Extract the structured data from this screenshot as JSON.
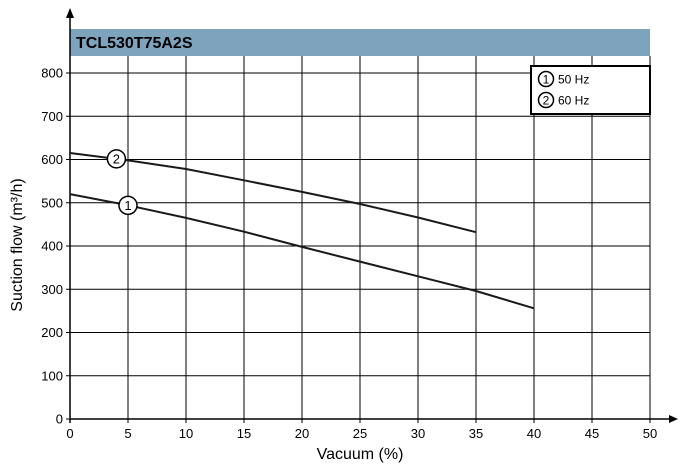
{
  "chart_data": {
    "type": "line",
    "title": "TCL530T75A2S",
    "xlabel": "Vacuum (%)",
    "ylabel": "Suction flow (m³/h)",
    "xlim": [
      0,
      50
    ],
    "ylim": [
      0,
      800
    ],
    "xticks": [
      "0",
      "5",
      "10",
      "15",
      "20",
      "25",
      "30",
      "35",
      "40",
      "45",
      "50"
    ],
    "yticks": [
      "0",
      "100",
      "200",
      "300",
      "400",
      "500",
      "600",
      "700",
      "800"
    ],
    "grid": true,
    "legend_position": "top-right",
    "series": [
      {
        "name": "50 Hz",
        "marker": "1",
        "marker_at": 5,
        "x": [
          0,
          5,
          10,
          15,
          20,
          25,
          30,
          35,
          40
        ],
        "y": [
          520,
          494,
          465,
          433,
          398,
          364,
          330,
          296,
          256
        ]
      },
      {
        "name": "60 Hz",
        "marker": "2",
        "marker_at": 4,
        "x": [
          0,
          5,
          10,
          15,
          20,
          25,
          30,
          35
        ],
        "y": [
          615,
          598,
          578,
          552,
          525,
          497,
          466,
          432
        ]
      }
    ],
    "colors": {
      "banner": "#7ea3bd",
      "line": "#1a1a1a",
      "grid": "#000000"
    }
  }
}
